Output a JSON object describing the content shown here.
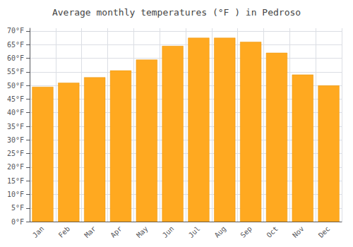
{
  "chart_data": {
    "type": "bar",
    "title": "Average monthly temperatures (°F ) in Pedroso",
    "categories": [
      "Jan",
      "Feb",
      "Mar",
      "Apr",
      "May",
      "Jun",
      "Jul",
      "Aug",
      "Sep",
      "Oct",
      "Nov",
      "Dec"
    ],
    "values": [
      49.5,
      51.0,
      53.0,
      55.5,
      59.5,
      64.5,
      67.5,
      67.5,
      66.0,
      62.0,
      54.0,
      50.0
    ],
    "color": "#FFA920",
    "ylim": [
      0,
      71
    ],
    "yticks": [
      {
        "value": 0,
        "label": "0°F"
      },
      {
        "value": 5,
        "label": "5°F"
      },
      {
        "value": 10,
        "label": "10°F"
      },
      {
        "value": 15,
        "label": "15°F"
      },
      {
        "value": 20,
        "label": "20°F"
      },
      {
        "value": 25,
        "label": "25°F"
      },
      {
        "value": 30,
        "label": "30°F"
      },
      {
        "value": 35,
        "label": "35°F"
      },
      {
        "value": 40,
        "label": "40°F"
      },
      {
        "value": 45,
        "label": "45°F"
      },
      {
        "value": 50,
        "label": "50°F"
      },
      {
        "value": 55,
        "label": "55°F"
      },
      {
        "value": 60,
        "label": "60°F"
      },
      {
        "value": 65,
        "label": "65°F"
      },
      {
        "value": 70,
        "label": "70°F"
      }
    ],
    "grid": true
  }
}
